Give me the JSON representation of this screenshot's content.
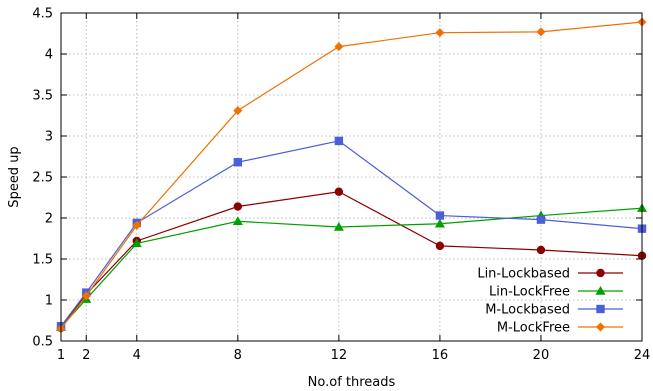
{
  "chart_data": {
    "type": "line",
    "title": "",
    "xlabel": "No.of threads",
    "ylabel": "Speed up",
    "x": [
      1,
      2,
      4,
      8,
      12,
      16,
      20,
      24
    ],
    "xticks": [
      "1",
      "2",
      "4",
      "8",
      "12",
      "16",
      "20",
      "24"
    ],
    "yticks": [
      "0.5",
      "1",
      "1.5",
      "2",
      "2.5",
      "3",
      "3.5",
      "4",
      "4.5"
    ],
    "xlim": [
      1,
      24
    ],
    "ylim": [
      0.5,
      4.5
    ],
    "grid": true,
    "legend_position": "bottom-right",
    "series": [
      {
        "name": "Lin-Lockbased",
        "color": "#8b0000",
        "marker": "circle",
        "values": [
          0.66,
          1.07,
          1.72,
          2.14,
          2.32,
          1.66,
          1.61,
          1.54
        ]
      },
      {
        "name": "Lin-LockFree",
        "color": "#00a000",
        "marker": "triangle",
        "values": [
          0.67,
          1.01,
          1.69,
          1.96,
          1.89,
          1.93,
          2.03,
          2.12
        ]
      },
      {
        "name": "M-Lockbased",
        "color": "#4b5fd8",
        "marker": "square",
        "values": [
          0.68,
          1.09,
          1.94,
          2.68,
          2.94,
          2.03,
          1.98,
          1.87
        ]
      },
      {
        "name": "M-LockFree",
        "color": "#f07000",
        "marker": "diamond",
        "values": [
          0.65,
          1.05,
          1.91,
          3.31,
          4.09,
          4.26,
          4.27,
          4.39
        ]
      }
    ]
  }
}
